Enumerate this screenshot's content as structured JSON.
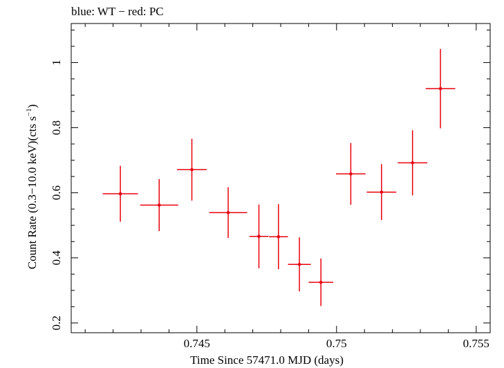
{
  "chart_data": {
    "type": "scatter",
    "title": "blue: WT − red: PC",
    "xlabel": "Time Since 57471.0 MJD (days)",
    "ylabel_main": "Count Rate (0.3−10.0 keV)(cts s",
    "ylabel_sup": "−1",
    "ylabel_close": ")",
    "xlim": [
      0.7405,
      0.7555
    ],
    "ylim": [
      0.17,
      1.12
    ],
    "x_ticks": [
      {
        "value": 0.745,
        "label": "0.745"
      },
      {
        "value": 0.75,
        "label": "0.75"
      },
      {
        "value": 0.755,
        "label": "0.755"
      }
    ],
    "y_ticks": [
      {
        "value": 0.2,
        "label": "0.2"
      },
      {
        "value": 0.4,
        "label": "0.4"
      },
      {
        "value": 0.6,
        "label": "0.6"
      },
      {
        "value": 0.8,
        "label": "0.8"
      },
      {
        "value": 1.0,
        "label": "1"
      }
    ],
    "series": [
      {
        "name": "PC",
        "color": "#e8000b",
        "points": [
          {
            "x": 0.74226,
            "xerr": 0.00063,
            "y": 0.597,
            "yerr": 0.086
          },
          {
            "x": 0.74365,
            "xerr": 0.00068,
            "y": 0.562,
            "yerr": 0.08
          },
          {
            "x": 0.74482,
            "xerr": 0.00053,
            "y": 0.671,
            "yerr": 0.095
          },
          {
            "x": 0.74612,
            "xerr": 0.00068,
            "y": 0.539,
            "yerr": 0.078
          },
          {
            "x": 0.74722,
            "xerr": 0.00034,
            "y": 0.466,
            "yerr": 0.098
          },
          {
            "x": 0.74792,
            "xerr": 0.00034,
            "y": 0.465,
            "yerr": 0.1
          },
          {
            "x": 0.74867,
            "xerr": 0.00041,
            "y": 0.38,
            "yerr": 0.083
          },
          {
            "x": 0.74944,
            "xerr": 0.00044,
            "y": 0.325,
            "yerr": 0.073
          },
          {
            "x": 0.75051,
            "xerr": 0.00053,
            "y": 0.658,
            "yerr": 0.095
          },
          {
            "x": 0.75161,
            "xerr": 0.00053,
            "y": 0.602,
            "yerr": 0.086
          },
          {
            "x": 0.75272,
            "xerr": 0.00053,
            "y": 0.692,
            "yerr": 0.1
          },
          {
            "x": 0.75372,
            "xerr": 0.00053,
            "y": 0.92,
            "yerr": 0.122
          }
        ]
      }
    ]
  }
}
